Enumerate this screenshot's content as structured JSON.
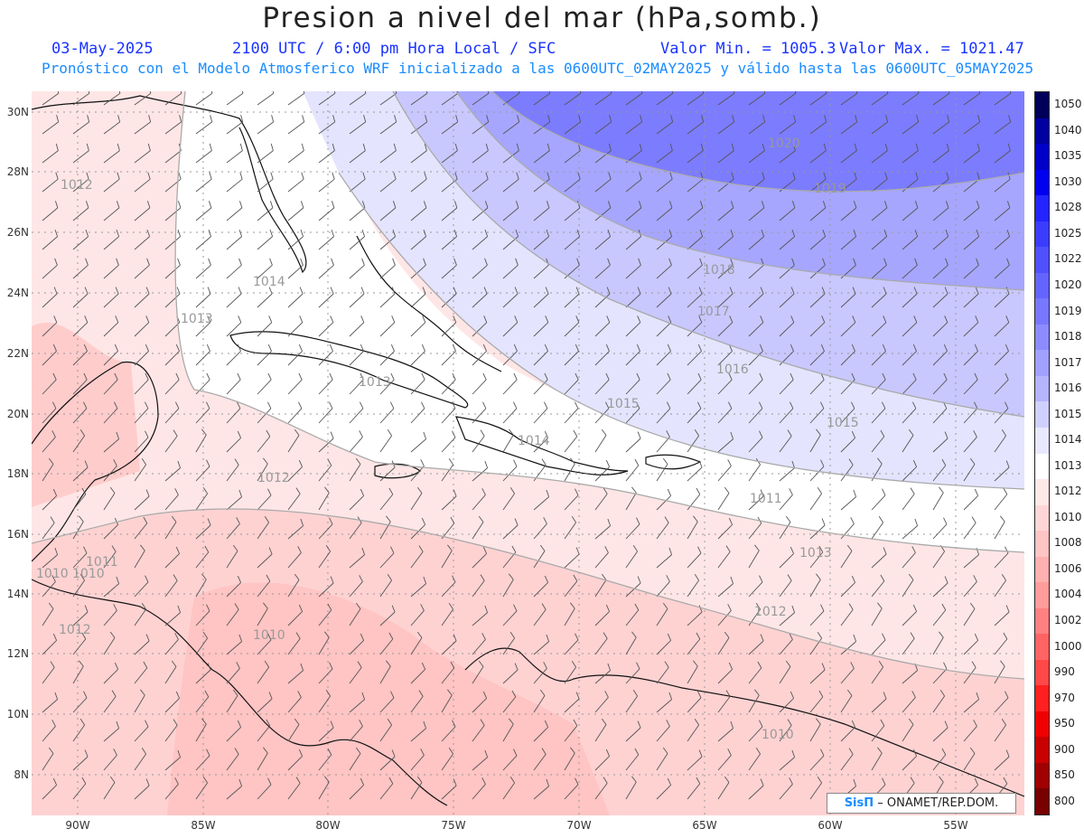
{
  "header": {
    "title": "Presion a nivel del mar (hPa,somb.)",
    "date": "03-May-2025",
    "time": "2100 UTC / 6:00 pm Hora Local / SFC",
    "min": "Valor Min. = 1005.3",
    "max": "Valor Max. = 1021.47",
    "model_line": "Pronóstico con el Modelo Atmosferico WRF inicializado a las 0600UTC_02MAY2025 y válido hasta las  0600UTC_05MAY2025"
  },
  "axes": {
    "lat_labels": [
      "30N",
      "28N",
      "26N",
      "24N",
      "22N",
      "20N",
      "18N",
      "16N",
      "14N",
      "12N",
      "10N",
      "8N"
    ],
    "lon_labels": [
      "90W",
      "85W",
      "80W",
      "75W",
      "70W",
      "65W",
      "60W",
      "55W"
    ]
  },
  "colorbar": {
    "levels": [
      "1050",
      "1040",
      "1035",
      "1030",
      "1028",
      "1025",
      "1022",
      "1020",
      "1019",
      "1018",
      "1017",
      "1016",
      "1015",
      "1014",
      "1013",
      "1012",
      "1010",
      "1008",
      "1006",
      "1004",
      "1002",
      "1000",
      "990",
      "970",
      "950",
      "900",
      "850",
      "800"
    ],
    "colors": [
      "#00005a",
      "#0000a0",
      "#0000c8",
      "#0000f0",
      "#2424ff",
      "#3c3cff",
      "#5050ff",
      "#6464ff",
      "#7878ff",
      "#8c8cff",
      "#a0a0ff",
      "#b4b4ff",
      "#d0d0ff",
      "#e8e8ff",
      "#ffffff",
      "#ffe8e8",
      "#ffd6d6",
      "#ffc4c4",
      "#ffb0b0",
      "#ff9c9c",
      "#ff8080",
      "#ff6464",
      "#ff4848",
      "#ff2020",
      "#f00000",
      "#c80000",
      "#a00000",
      "#780000"
    ]
  },
  "contour_labels": [
    "1020",
    "1019",
    "1018",
    "1017",
    "1016",
    "1015",
    "1015",
    "1014",
    "1014",
    "1013",
    "1013",
    "1013",
    "1012",
    "1012",
    "1012",
    "1012",
    "1011",
    "1011",
    "1010",
    "1010",
    "1010",
    "1010"
  ],
  "credit": {
    "logo": "SisΠ",
    "text": "– ONAMET/REP.DOM."
  },
  "colors": {
    "title": "#222222",
    "subtitle": "#1a33ff",
    "model_line": "#1a8cff"
  }
}
